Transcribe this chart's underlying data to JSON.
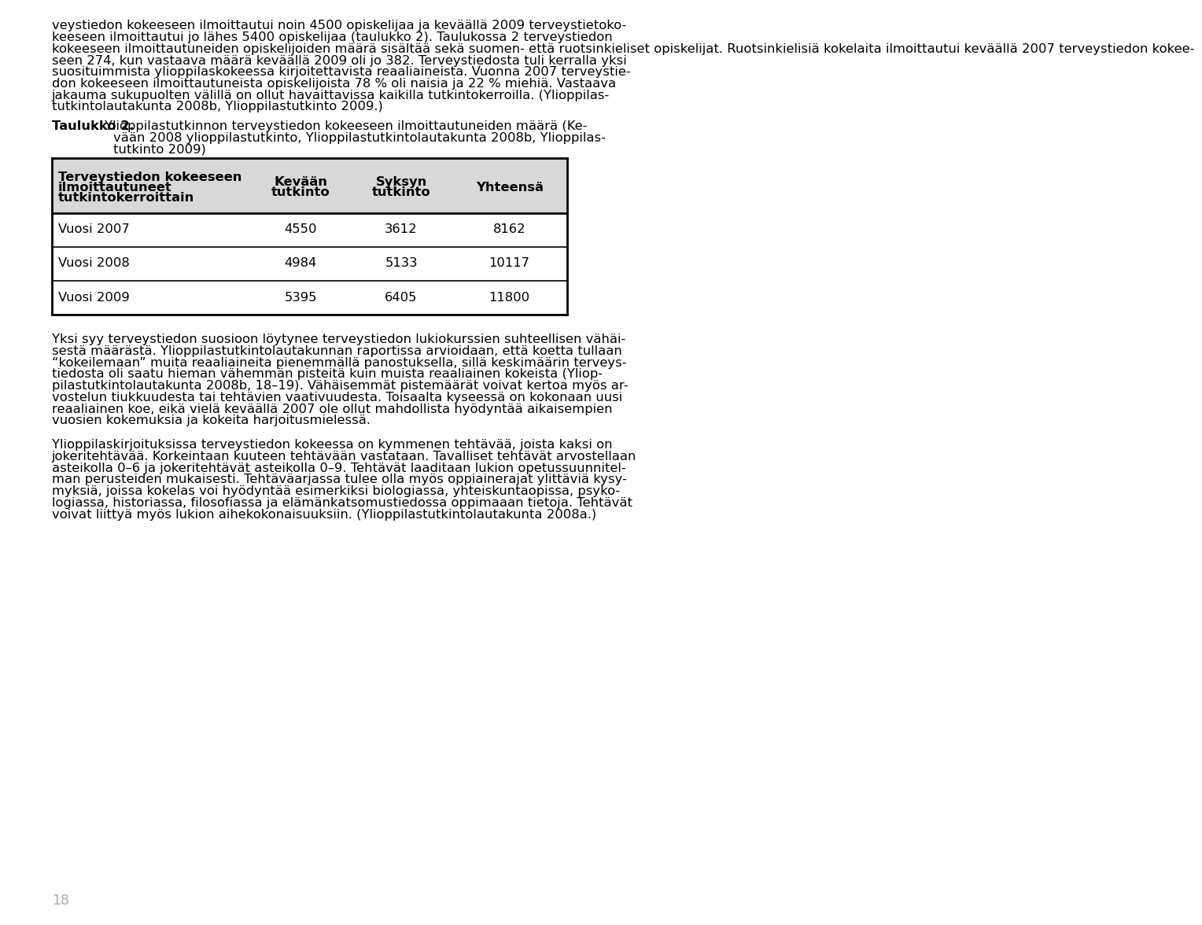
{
  "background_color": "#ffffff",
  "font_size_body": 11.8,
  "header_bg_color": "#d8d8d8",
  "page_number": "18",
  "page_num_color": "#aaaaaa",
  "table_label": "Taulukko 2.",
  "table_header_col0": "Terveystiedon kokeeseen\nilmoittautuneet\ntutkintokerroittain",
  "table_header_col1": "Kevään\ntutkinto",
  "table_header_col2": "Syksyn\ntutkinto",
  "table_header_col3": "Yhteensä",
  "table_rows": [
    [
      "Vuosi 2007",
      "4550",
      "3612",
      "8162"
    ],
    [
      "Vuosi 2008",
      "4984",
      "5133",
      "10117"
    ],
    [
      "Vuosi 2009",
      "5395",
      "6405",
      "11800"
    ]
  ],
  "para1_lines": [
    "veystiedon kokeeseen ilmoittautui noin 4500 opiskelijaa ja keväällä 2009 terveystietoko-",
    "keeseen ilmoittautui jo lähes 5400 opiskelijaa (taulukko 2). Taulukossa 2 terveystiedon",
    "kokeeseen ilmoittautuneiden opiskelijoiden määrä sisältää sekä suomen- että ruotsinkieliset opiskelijat. Ruotsinkielisiä kokelaita ilmoittautui keväällä 2007 terveystiedon kokee-",
    "seen 274, kun vastaava määrä keväällä 2009 oli jo 382. Terveystiedosta tuli kerralla yksi",
    "suosituimmista ylioppilaskokeessa kirjoitettavista reaaliaineista. Vuonna 2007 terveystie-",
    "don kokeeseen ilmoittautuneista opiskelijoista 78 % oli naisia ja 22 % miehiä. Vastaava",
    "jakauma sukupuolten välillä on ollut havaittavissa kaikilla tutkintokerroilla. (Ylioppilas-",
    "tutkintolautakunta 2008b, Ylioppilastutkinto 2009.)"
  ],
  "cap_line1": "vään 2008 ylioppilastutkinto, Ylioppilastutkintolautakunta 2008b, Ylioppilas-",
  "cap_line2": "tutkinto 2009)",
  "cap_first": "Ylioppilastutkinnon terveystiedon kokeeseen ilmoittautuneiden määrä (Ke-",
  "para2_lines": [
    "Yksi syy terveystiedon suosioon löytynee terveystiedon lukiokurssien suhteellisen vähäi-",
    "sestä määrästä. Ylioppilastutkintolautakunnan raportissa arvioidaan, että koetta tullaan",
    "“kokeilemaan” muita reaaliaineita pienemmällä panostuksella, sillä keskimäärin terveys-",
    "tiedosta oli saatu hieman vähemmän pisteitä kuin muista reaaliainen kokeista (Yliop-",
    "pilastutkintolautakunta 2008b, 18–19). Vähäisemmät pistemäärät voivat kertoa myös ar-",
    "vostelun tiukkuudesta tai tehtävien vaativuudesta. Toisaalta kyseessä on kokonaan uusi",
    "reaaliainen koe, eikä vielä keväällä 2007 ole ollut mahdollista hyödyntää aikaisempien",
    "vuosien kokemuksia ja kokeita harjoitusmielessä."
  ],
  "para3_lines": [
    "Ylioppilaskirjoituksissa terveystiedon kokeessa on kymmenen tehtävää, joista kaksi on",
    "jokeritehtävää. Korkeintaan kuuteen tehtävään vastataan. Tavalliset tehtävät arvostellaan",
    "asteikolla 0–6 ja jokeritehtävät asteikolla 0–9. Tehtävät laaditaan lukion opetussuunnitel-",
    "man perusteiden mukaisesti. Tehtäväarjassa tulee olla myös oppiainerajat ylittäviä kysy-",
    "myksiä, joissa kokelas voi hyödyntää esimerkiksi biologiassa, yhteiskuntaopissa, psyko-",
    "logiassa, historiassa, filosofiassa ja elämänkatsomustiedossa oppimaaan tietoja. Tehtävät",
    "voivat liittyä myös lukion aihekokonaisuuksiin. (Ylioppilastutkintolautakunta 2008a.)"
  ]
}
